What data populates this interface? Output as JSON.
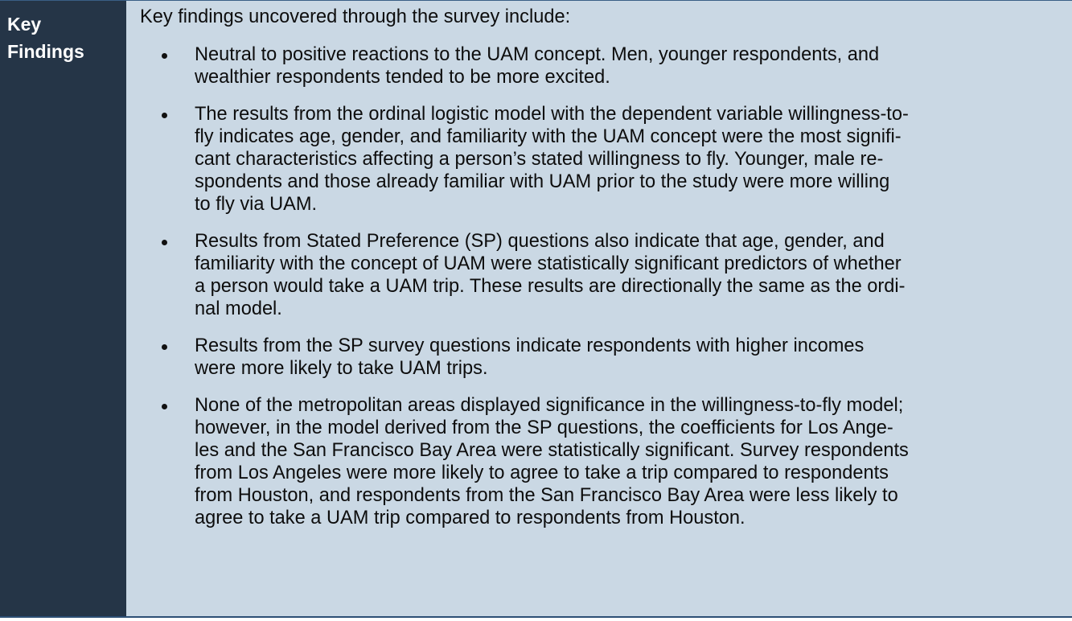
{
  "label": {
    "line1": "Key",
    "line2": "Findings"
  },
  "intro": "Key findings uncovered through the survey include:",
  "findings": [
    {
      "lines": [
        "Neutral to positive reactions to the UAM concept. Men, younger respondents, and",
        "wealthier respondents tended to be more excited."
      ]
    },
    {
      "lines": [
        "The results from the ordinal logistic model with the dependent variable willingness-to-",
        "fly indicates age, gender, and familiarity with the UAM concept were the most signifi-",
        "cant characteristics affecting a person’s stated willingness to fly. Younger, male re-",
        "spondents and those already familiar with UAM prior to the study were more willing",
        "to fly via UAM."
      ]
    },
    {
      "lines": [
        "Results from Stated Preference (SP) questions also indicate that age, gender, and",
        "familiarity with the concept of UAM were statistically significant predictors of whether",
        "a person would take a UAM trip. These results are directionally the same as the ordi-",
        "nal model."
      ]
    },
    {
      "lines": [
        "Results from the SP survey questions indicate respondents with higher incomes",
        "were more likely to take UAM trips."
      ]
    },
    {
      "lines": [
        "None of the metropolitan areas displayed significance in the willingness-to-fly model;",
        "however, in the model derived from the SP questions, the coefficients for Los Ange-",
        "les and the San Francisco Bay Area were statistically significant. Survey respondents",
        "from Los Angeles were more likely to agree to take a trip compared to respondents",
        "from Houston, and respondents from the San Francisco Bay Area were less likely to",
        "agree to take a UAM trip compared to respondents from Houston."
      ]
    }
  ]
}
